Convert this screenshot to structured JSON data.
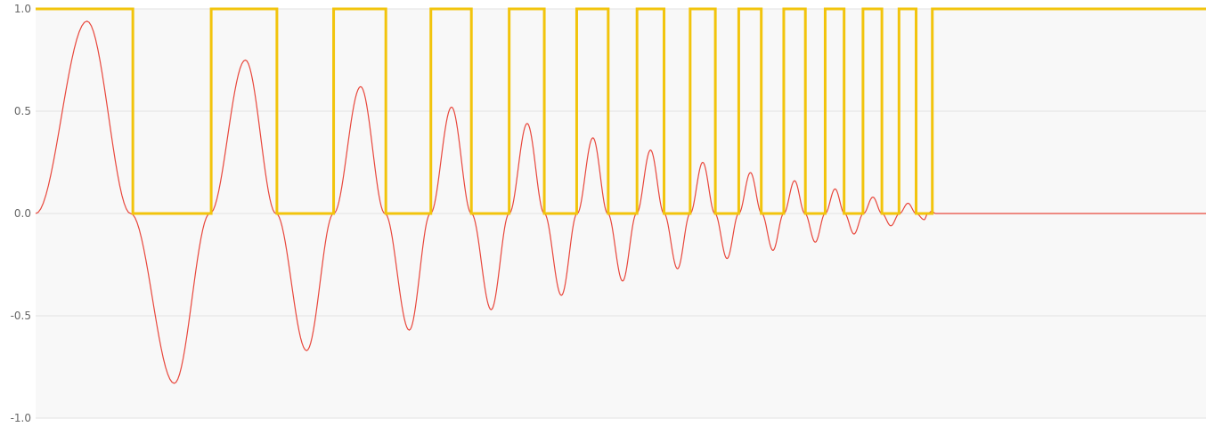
{
  "chart_data": {
    "type": "line",
    "title": "",
    "xlabel": "",
    "ylabel": "",
    "ylim": [
      -1.0,
      1.0
    ],
    "y_ticks": [
      "1.0",
      "0.5",
      "0.0",
      "-0.5",
      "-1.0"
    ],
    "grid": true,
    "legend": "none",
    "colors": {
      "plot_background": "#f8f8f8",
      "grid": "#e2e2e2",
      "signal": "#e8473c",
      "square": "#f2c40c"
    },
    "series": [
      {
        "key": "decaying_chirp",
        "peaks": [
          {
            "x": 0.057,
            "y": 0.94
          },
          {
            "x": 0.154,
            "y": -0.83
          },
          {
            "x": 0.233,
            "y": 0.75
          },
          {
            "x": 0.301,
            "y": -0.67
          },
          {
            "x": 0.361,
            "y": 0.62
          },
          {
            "x": 0.415,
            "y": -0.57
          },
          {
            "x": 0.462,
            "y": 0.52
          },
          {
            "x": 0.506,
            "y": -0.47
          },
          {
            "x": 0.546,
            "y": 0.44
          },
          {
            "x": 0.584,
            "y": -0.4
          },
          {
            "x": 0.619,
            "y": 0.37
          },
          {
            "x": 0.652,
            "y": -0.33
          },
          {
            "x": 0.683,
            "y": 0.31
          },
          {
            "x": 0.713,
            "y": -0.27
          },
          {
            "x": 0.741,
            "y": 0.25
          },
          {
            "x": 0.768,
            "y": -0.22
          },
          {
            "x": 0.794,
            "y": 0.2
          },
          {
            "x": 0.819,
            "y": -0.18
          },
          {
            "x": 0.843,
            "y": 0.16
          },
          {
            "x": 0.866,
            "y": -0.14
          },
          {
            "x": 0.888,
            "y": 0.12
          },
          {
            "x": 0.909,
            "y": -0.1
          },
          {
            "x": 0.93,
            "y": 0.08
          },
          {
            "x": 0.95,
            "y": -0.06
          },
          {
            "x": 0.969,
            "y": 0.05
          },
          {
            "x": 0.987,
            "y": -0.03
          },
          {
            "x": 0.995,
            "y": 0.01
          }
        ],
        "end": 1.0,
        "tail_end": 1.3
      },
      {
        "key": "square_wave",
        "low": 0.0,
        "high": 1.0,
        "initial": 1.0,
        "switch_x": [
          0.108,
          0.195,
          0.268,
          0.331,
          0.389,
          0.439,
          0.484,
          0.526,
          0.565,
          0.601,
          0.636,
          0.668,
          0.698,
          0.727,
          0.755,
          0.781,
          0.806,
          0.831,
          0.855,
          0.877,
          0.898,
          0.919,
          0.94,
          0.959,
          0.978,
          0.996
        ],
        "x_end": 1.3
      }
    ]
  }
}
